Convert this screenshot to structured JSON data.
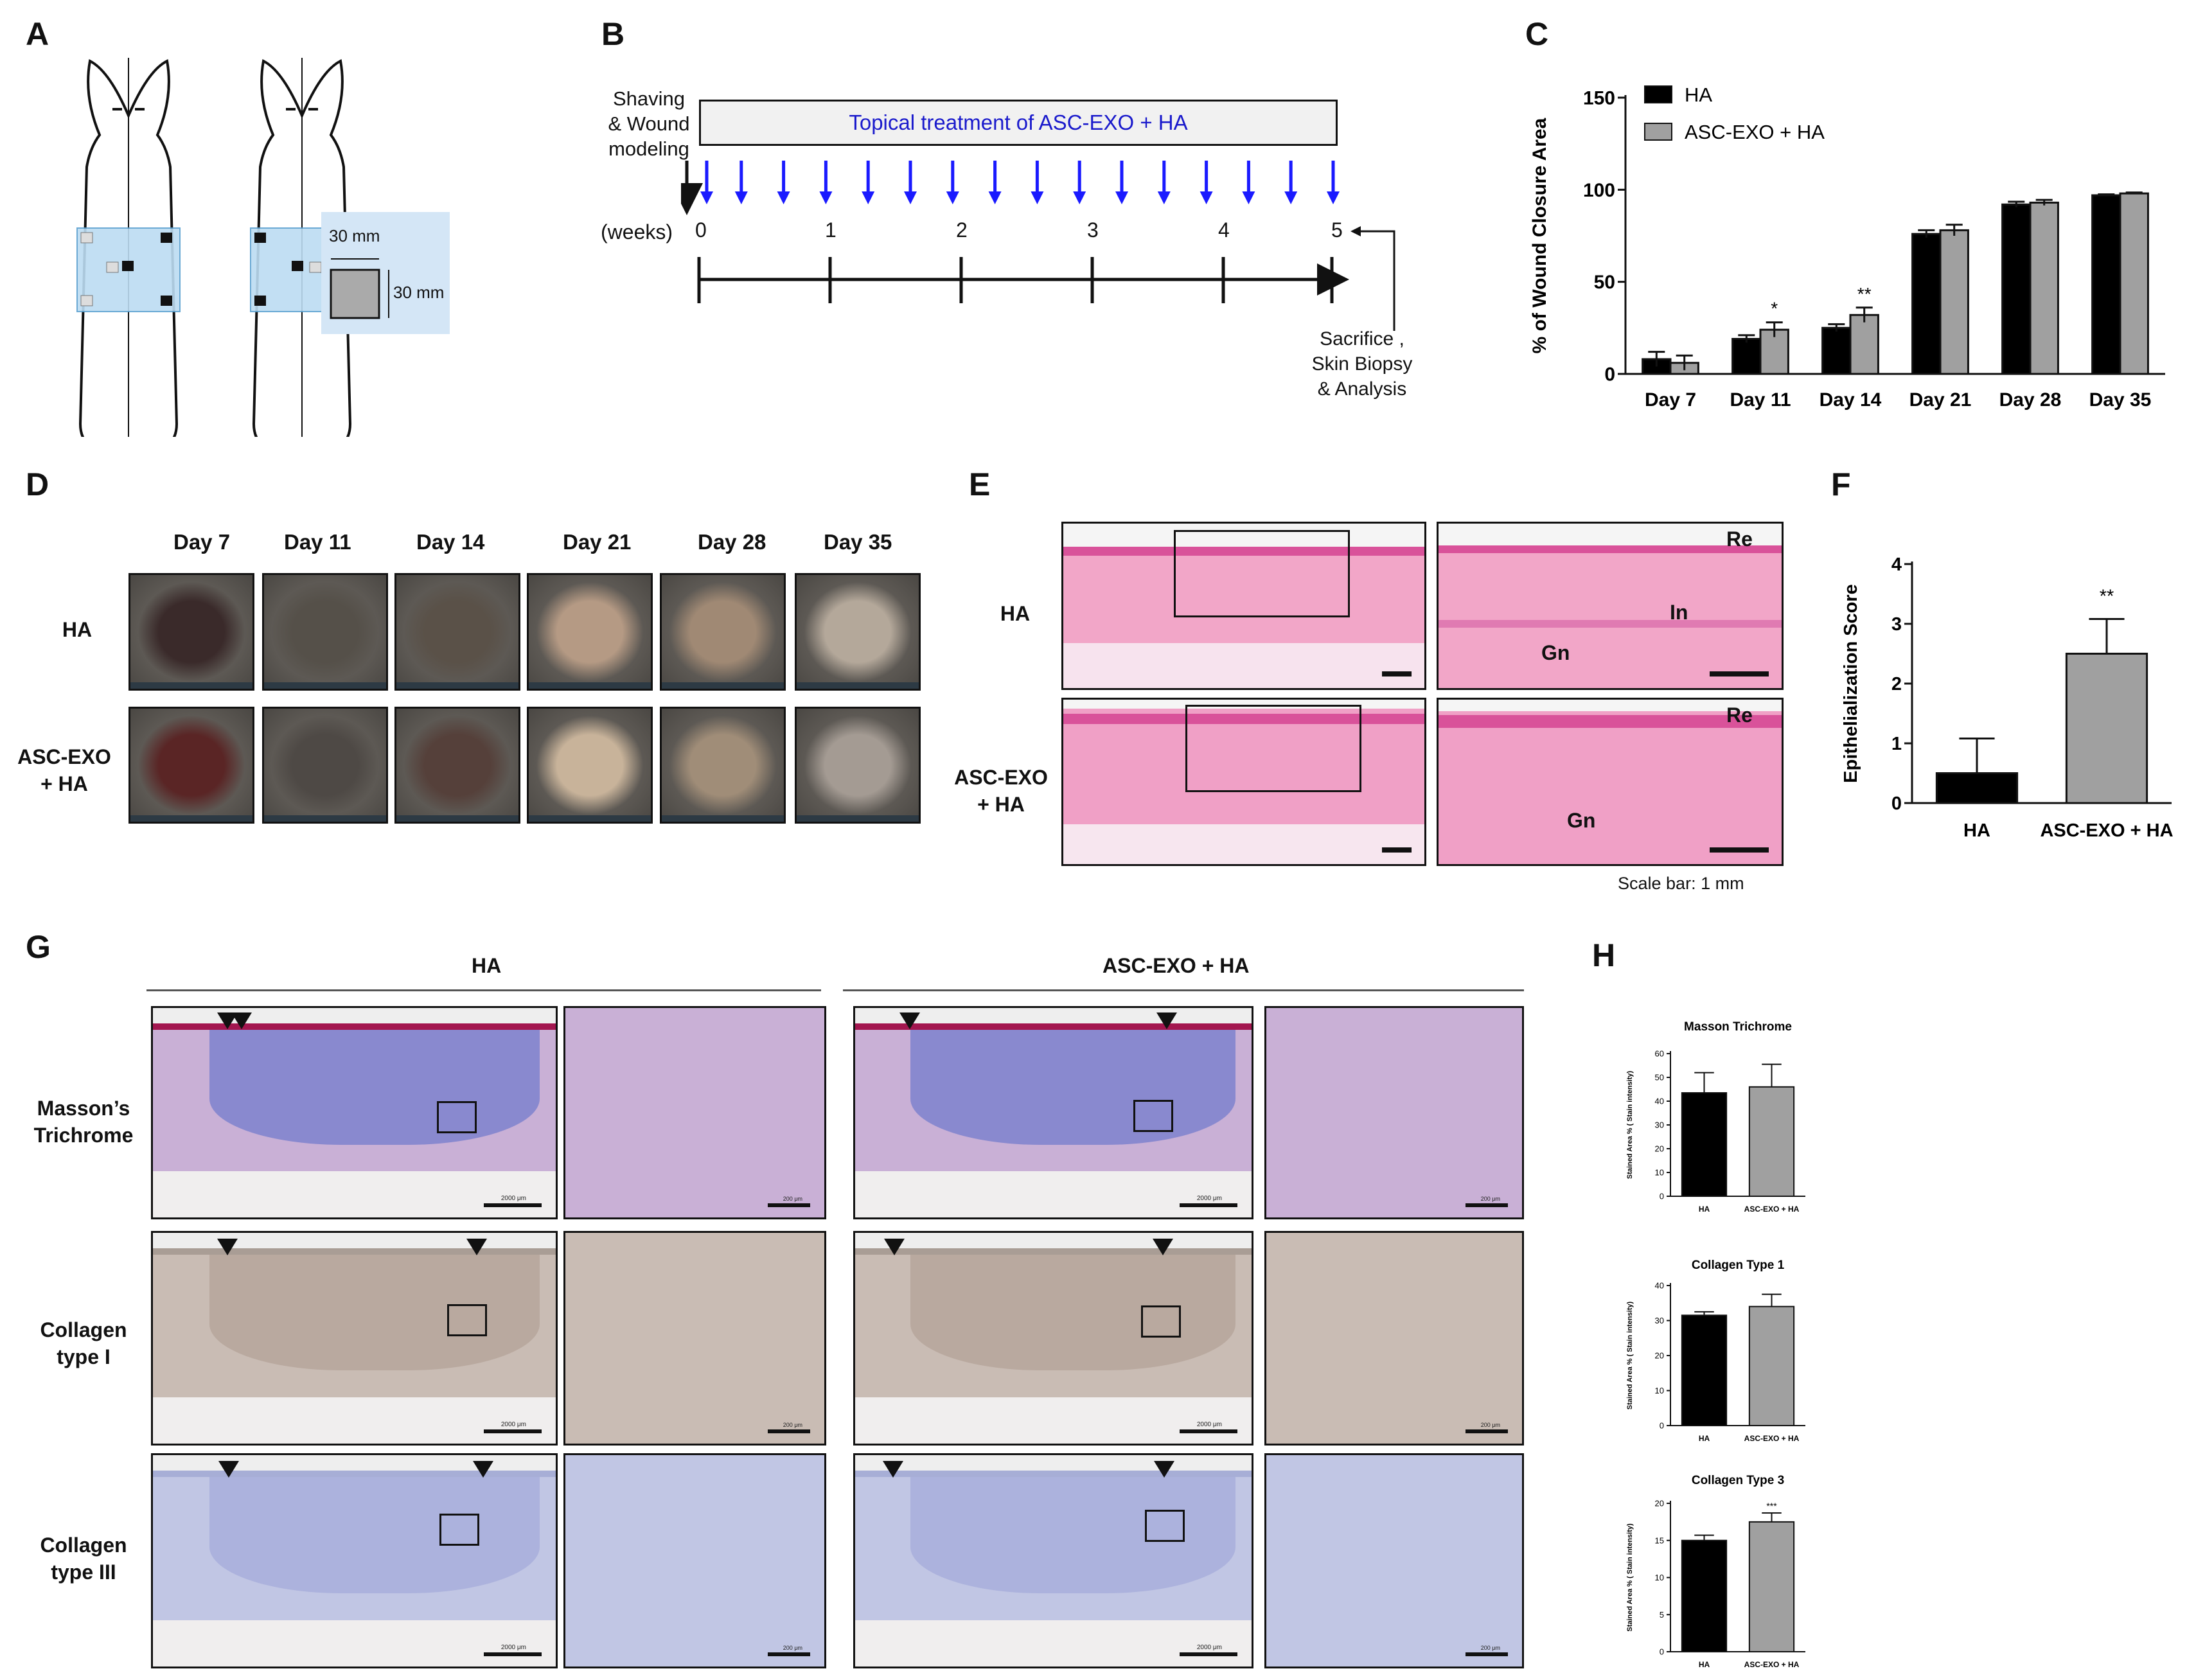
{
  "panels": {
    "A": "A",
    "B": "B",
    "C": "C",
    "D": "D",
    "E": "E",
    "F": "F",
    "G": "G",
    "H": "H"
  },
  "panel_a": {
    "dim1": "30 mm",
    "dim2": "30 mm"
  },
  "panel_b": {
    "left_label_lines": [
      "Shaving",
      "& Wound",
      "modeling"
    ],
    "treatment": "Topical treatment of ASC-EXO + HA",
    "weeks_label": "(weeks)",
    "ticks": [
      "0",
      "1",
      "2",
      "3",
      "4",
      "5"
    ],
    "end_label_lines": [
      "Sacrifice ,",
      "Skin Biopsy",
      "& Analysis"
    ]
  },
  "panel_d": {
    "days": [
      "Day 7",
      "Day 11",
      "Day 14",
      "Day 21",
      "Day 28",
      "Day 35"
    ],
    "row1": "HA",
    "row2_lines": [
      "ASC-EXO",
      "+ HA"
    ]
  },
  "panel_e": {
    "row1": "HA",
    "row2_lines": [
      "ASC-EXO",
      "+ HA"
    ],
    "re": "Re",
    "in_label": "In",
    "gn": "Gn",
    "scale": "Scale bar: 1 mm"
  },
  "panel_g": {
    "group1": "HA",
    "group2": "ASC-EXO + HA",
    "rows": [
      [
        "Masson’s",
        "Trichrome"
      ],
      [
        "Collagen",
        "type I"
      ],
      [
        "Collagen",
        "type III"
      ]
    ],
    "scale_big": "2000 μm",
    "scale_small": "200 μm"
  },
  "colors": {
    "ha": "#000000",
    "exo": "#a0a0a0",
    "blue_arrow": "#1a1aff",
    "treatment_text": "#1a1acc"
  },
  "chart_data": [
    {
      "id": "C",
      "type": "bar",
      "categories": [
        "Day 7",
        "Day 11",
        "Day 14",
        "Day 21",
        "Day 28",
        "Day 35"
      ],
      "series": [
        {
          "name": "HA",
          "values": [
            8,
            19,
            25,
            76,
            92,
            97
          ],
          "errors": [
            4,
            2,
            2,
            2,
            1.5,
            0.5
          ]
        },
        {
          "name": "ASC-EXO + HA",
          "values": [
            6,
            24,
            32,
            78,
            93,
            98
          ],
          "errors": [
            4,
            4,
            4,
            3,
            1.5,
            0.5
          ]
        }
      ],
      "annotations": [
        "",
        "*",
        "**",
        "",
        "",
        ""
      ],
      "ylabel": "% of Wound Closure Area",
      "yticks": [
        0,
        50,
        100,
        150
      ],
      "ylim": [
        0,
        150
      ]
    },
    {
      "id": "F",
      "type": "bar",
      "categories": [
        "HA",
        "ASC-EXO + HA"
      ],
      "values": [
        0.5,
        2.5
      ],
      "errors": [
        0.58,
        0.58
      ],
      "annotations": [
        "",
        "**"
      ],
      "ylabel": "Epithelialization Score",
      "yticks": [
        0,
        1,
        2,
        3,
        4
      ],
      "ylim": [
        0,
        4
      ]
    },
    {
      "id": "H1",
      "type": "bar",
      "title": "Masson Trichrome",
      "categories": [
        "HA",
        "ASC-EXO + HA"
      ],
      "values": [
        43.5,
        46
      ],
      "errors": [
        8.5,
        9.5
      ],
      "ylabel": "Stained Area % ( Stain intensity)",
      "yticks": [
        0,
        10,
        20,
        30,
        40,
        50,
        60
      ],
      "ylim": [
        0,
        60
      ]
    },
    {
      "id": "H2",
      "type": "bar",
      "title": "Collagen Type 1",
      "categories": [
        "HA",
        "ASC-EXO + HA"
      ],
      "values": [
        31.5,
        34
      ],
      "errors": [
        1,
        3.5
      ],
      "ylabel": "Stained Area % ( Stain intensity)",
      "yticks": [
        0,
        10,
        20,
        30,
        40
      ],
      "ylim": [
        0,
        40
      ]
    },
    {
      "id": "H3",
      "type": "bar",
      "title": "Collagen Type 3",
      "categories": [
        "HA",
        "ASC-EXO + HA"
      ],
      "values": [
        15,
        17.5
      ],
      "errors": [
        0.7,
        1.2
      ],
      "annotations": [
        "",
        "***"
      ],
      "ylabel": "Stained Area % ( Stain intensity)",
      "yticks": [
        0,
        5,
        10,
        15,
        20
      ],
      "ylim": [
        0,
        20
      ]
    }
  ]
}
